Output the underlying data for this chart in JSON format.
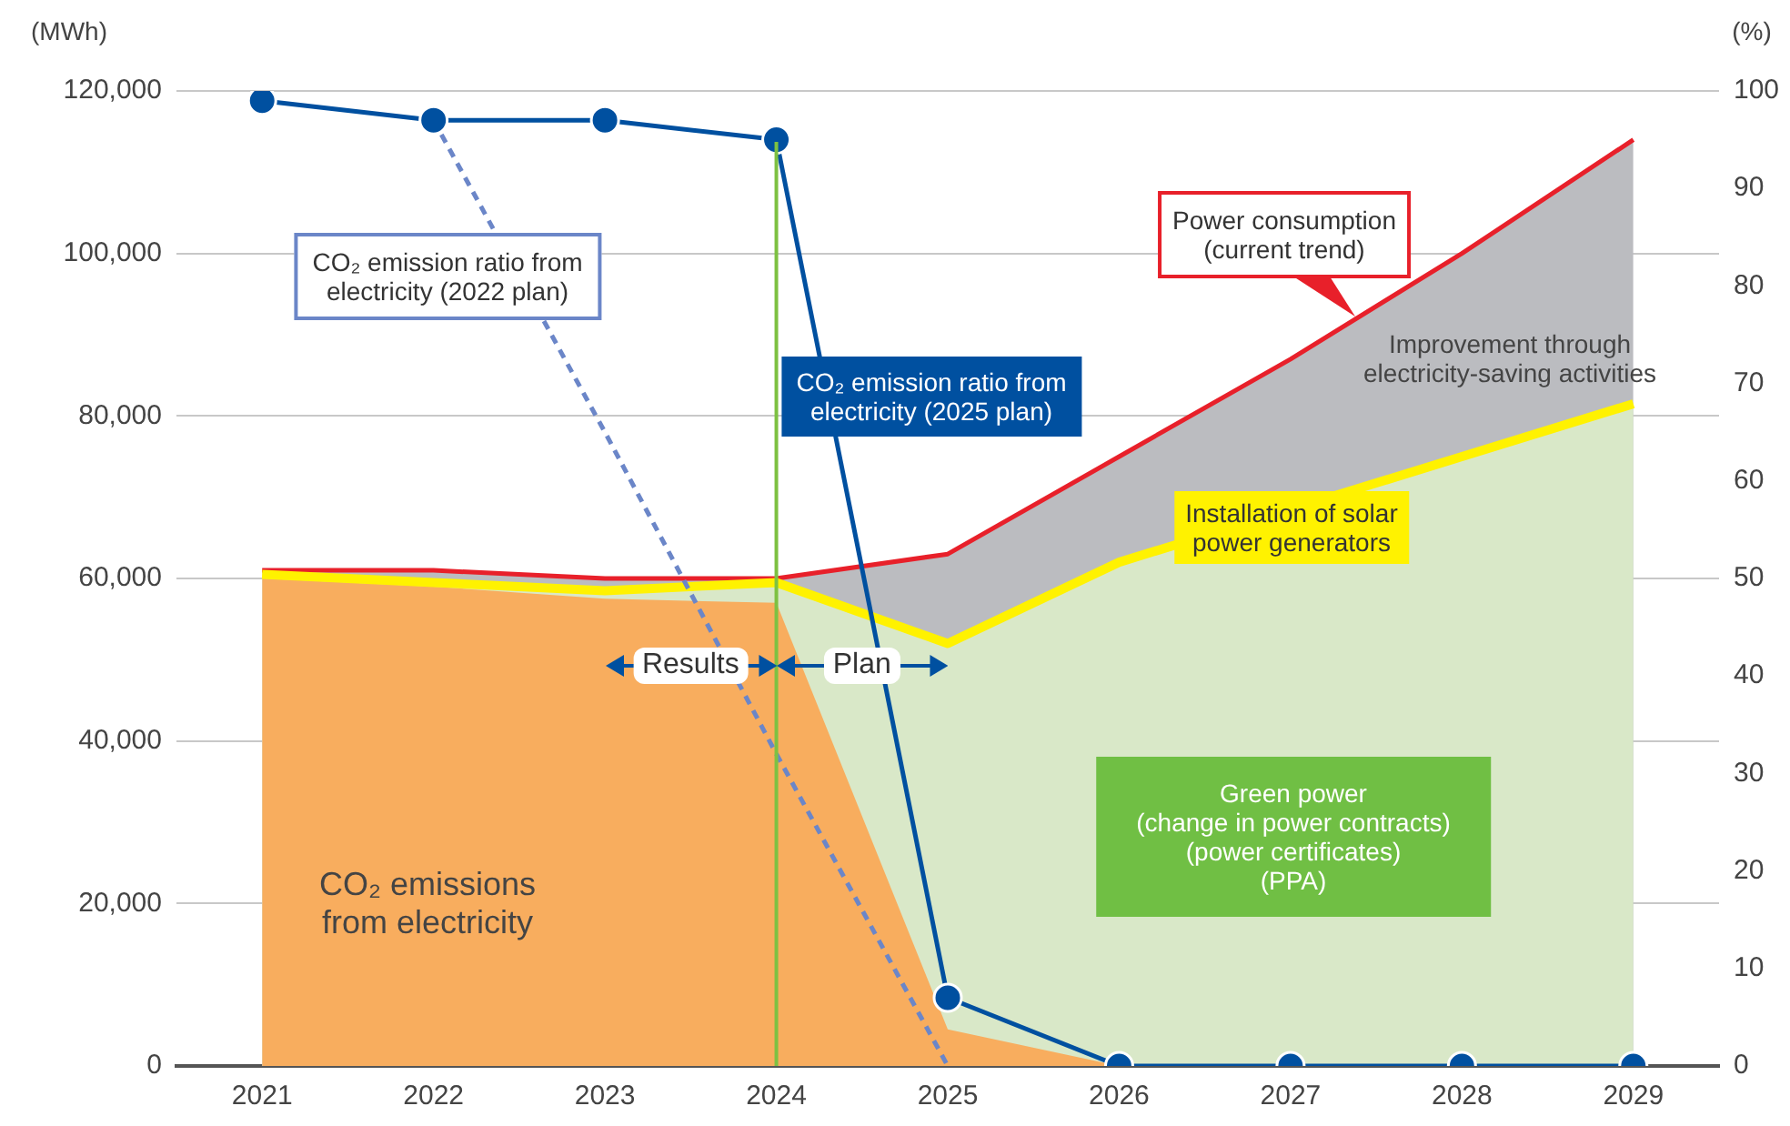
{
  "chart_data": {
    "type": "area",
    "categories": [
      "2021",
      "2022",
      "2023",
      "2024",
      "2025",
      "2026",
      "2027",
      "2028",
      "2029"
    ],
    "ylabel": "(MWh)",
    "y2label": "(%)",
    "ylim": [
      0,
      120000
    ],
    "yticks": [
      {
        "value": 0,
        "label": "0"
      },
      {
        "value": 20000,
        "label": "20,000"
      },
      {
        "value": 40000,
        "label": "40,000"
      },
      {
        "value": 60000,
        "label": "60,000"
      },
      {
        "value": 80000,
        "label": "80,000"
      },
      {
        "value": 100000,
        "label": "100,000"
      },
      {
        "value": 120000,
        "label": "120,000"
      }
    ],
    "y2lim": [
      0,
      100
    ],
    "y2ticks": [
      0,
      10,
      20,
      30,
      40,
      50,
      60,
      70,
      80,
      90,
      100
    ],
    "grid": "y",
    "legend": false,
    "series": [
      {
        "name": "CO₂ emissions\nfrom electricity",
        "color": "#f8ad5e",
        "values": [
          60000,
          59000,
          57500,
          57000,
          4500,
          0,
          null,
          null,
          null
        ]
      },
      {
        "name": "Installation of solar\npower generators",
        "color": "#fff200",
        "values": [
          60500,
          59500,
          58500,
          59500,
          52000,
          62000,
          null,
          75000,
          81500
        ]
      },
      {
        "name": "Power consumption\n(current trend)",
        "color": "#e8202a",
        "values": [
          61000,
          61000,
          60000,
          60000,
          63000,
          75000,
          87000,
          100000,
          114000
        ]
      },
      {
        "type": "line",
        "name": "CO₂ emission ratio from\nelectricity (2022 plan)",
        "color": "#6b86c8",
        "axis": "y2",
        "line_style": "dashed",
        "values": [
          null,
          97,
          65,
          32,
          0,
          null,
          null,
          null,
          null
        ]
      },
      {
        "type": "line",
        "name": "CO₂ emission ratio from\nelectricity (2025 plan)",
        "color": "#0050a0",
        "axis": "y2",
        "marker": "circle",
        "values": [
          99,
          97,
          97,
          95,
          7,
          0,
          0,
          0,
          0
        ]
      }
    ],
    "ref_lines": [
      {
        "axis": "x",
        "value": "2024",
        "color": "#7dc142"
      }
    ],
    "annotations": [
      "Improvement through\nelectricity-saving activities",
      "Green power\n(change in power contracts)\n(power certificates)\n(PPA)",
      "Results",
      "Plan"
    ]
  }
}
